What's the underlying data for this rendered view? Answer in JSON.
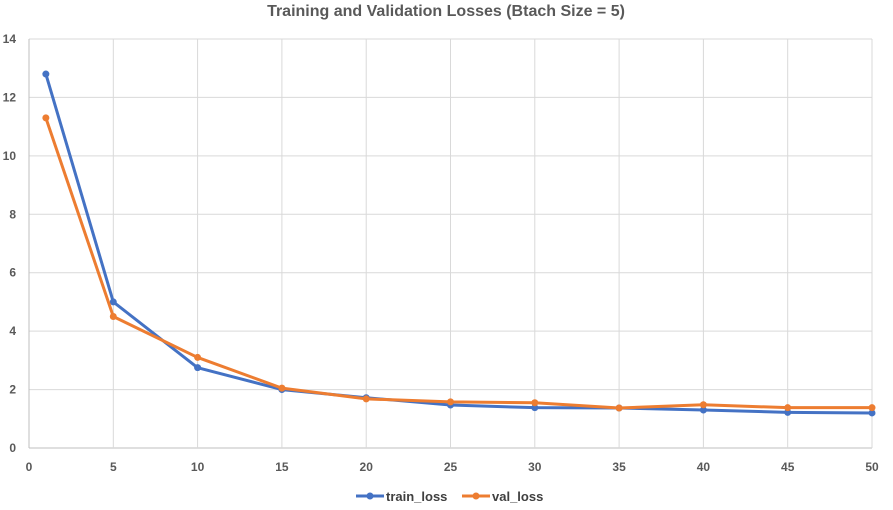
{
  "chart_data": {
    "type": "line",
    "title": "Training and Validation Losses (Btach Size = 5)",
    "xlabel": "",
    "ylabel": "",
    "xlim": [
      0,
      50
    ],
    "ylim": [
      0,
      14
    ],
    "x_ticks": [
      0,
      5,
      10,
      15,
      20,
      25,
      30,
      35,
      40,
      45,
      50
    ],
    "y_ticks": [
      0,
      2,
      4,
      6,
      8,
      10,
      12,
      14
    ],
    "grid": true,
    "legend_position": "bottom",
    "x": [
      1,
      5,
      10,
      15,
      20,
      25,
      30,
      35,
      40,
      45,
      50
    ],
    "series": [
      {
        "name": "train_loss",
        "color": "#4472C4",
        "values": [
          12.8,
          5.0,
          2.75,
          2.0,
          1.72,
          1.47,
          1.38,
          1.37,
          1.3,
          1.22,
          1.2
        ]
      },
      {
        "name": "val_loss",
        "color": "#ED7D31",
        "values": [
          11.3,
          4.5,
          3.1,
          2.05,
          1.68,
          1.58,
          1.55,
          1.37,
          1.48,
          1.38,
          1.38
        ]
      }
    ]
  }
}
